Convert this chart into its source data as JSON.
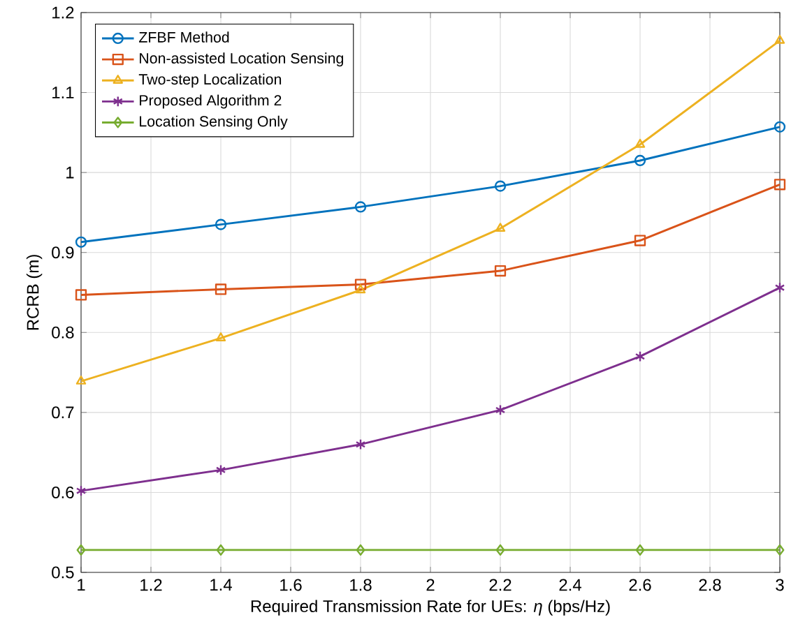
{
  "chart_data": {
    "type": "line",
    "xlabel": "Required Transmission Rate for UEs: *η* (bps/Hz)",
    "ylabel": "RCRB (m)",
    "x": [
      1,
      1.4,
      1.8,
      2.2,
      2.6,
      3
    ],
    "series": [
      {
        "name": "ZFBF Method",
        "color": "#0072bd",
        "marker": "circle",
        "values": [
          0.913,
          0.935,
          0.957,
          0.983,
          1.015,
          1.057
        ]
      },
      {
        "name": "Non-assisted Location Sensing",
        "color": "#d95319",
        "marker": "square",
        "values": [
          0.847,
          0.854,
          0.86,
          0.877,
          0.915,
          0.985
        ]
      },
      {
        "name": "Two-step Localization",
        "color": "#edb120",
        "marker": "triangle",
        "values": [
          0.739,
          0.793,
          0.853,
          0.93,
          1.035,
          1.165
        ]
      },
      {
        "name": "Proposed Algorithm 2",
        "color": "#7e2f8e",
        "marker": "cross",
        "values": [
          0.602,
          0.628,
          0.66,
          0.703,
          0.77,
          0.856
        ]
      },
      {
        "name": "Location Sensing Only",
        "color": "#77ac30",
        "marker": "diamond",
        "values": [
          0.528,
          0.528,
          0.528,
          0.528,
          0.528,
          0.528
        ]
      }
    ],
    "xlim": [
      1,
      3
    ],
    "ylim": [
      0.5,
      1.2
    ],
    "xticks": [
      1,
      1.2,
      1.4,
      1.6,
      1.8,
      2,
      2.2,
      2.4,
      2.6,
      2.8,
      3
    ],
    "yticks": [
      0.5,
      0.6,
      0.7,
      0.8,
      0.9,
      1,
      1.1,
      1.2
    ],
    "grid": true,
    "legend": "top left",
    "line_style": "solid"
  }
}
